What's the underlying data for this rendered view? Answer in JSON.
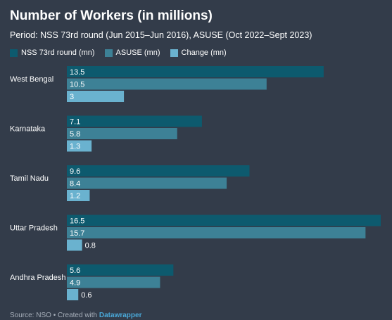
{
  "chart_data": {
    "type": "bar",
    "orientation": "horizontal",
    "title": "Number of Workers (in millions)",
    "subtitle": "Period: NSS 73rd round (Jun 2015–Jun 2016), ASUSE (Oct 2022–Sept 2023)",
    "categories": [
      "West Bengal",
      "Karnataka",
      "Tamil Nadu",
      "Uttar Pradesh",
      "Andhra Pradesh"
    ],
    "series": [
      {
        "name": "NSS 73rd round (mn)",
        "color": "#0d5a6e",
        "values": [
          13.5,
          7.1,
          9.6,
          16.5,
          5.6
        ],
        "labels": [
          "13.5",
          "7.1",
          "9.6",
          "16.5",
          "5.6"
        ]
      },
      {
        "name": "ASUSE (mn)",
        "color": "#3d8196",
        "values": [
          10.5,
          5.8,
          8.4,
          15.7,
          4.9
        ],
        "labels": [
          "10.5",
          "5.8",
          "8.4",
          "15.7",
          "4.9"
        ]
      },
      {
        "name": "Change (mn)",
        "color": "#6ab2cf",
        "values": [
          3,
          1.3,
          1.2,
          0.8,
          0.6
        ],
        "labels": [
          "3",
          "1.3",
          "1.2",
          "0.8",
          "0.6"
        ]
      }
    ],
    "xlim": [
      0,
      16.5
    ],
    "grid": false,
    "legend_position": "top-left"
  },
  "source": {
    "prefix": "Source: NSO • Created with ",
    "tool": "Datawrapper"
  }
}
